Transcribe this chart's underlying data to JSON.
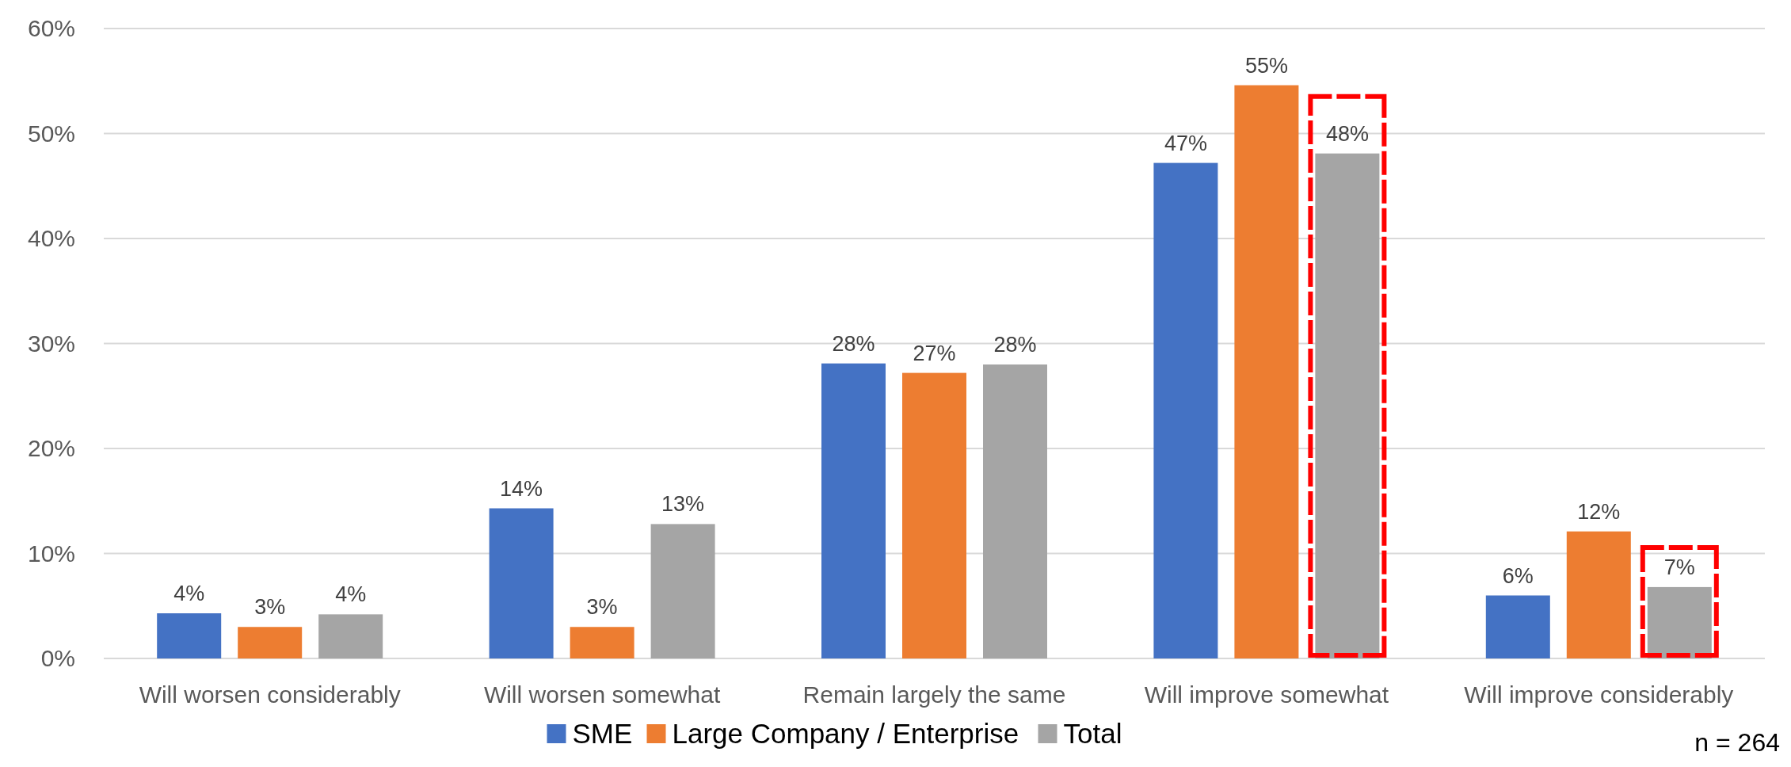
{
  "chart_data": {
    "type": "bar",
    "categories": [
      "Will worsen considerably",
      "Will worsen somewhat",
      "Remain largely the same",
      "Will improve somewhat",
      "Will improve considerably"
    ],
    "series": [
      {
        "name": "SME",
        "color": "#4472c4",
        "values": [
          4.3,
          14.3,
          28.1,
          47.2,
          6.0
        ],
        "value_labels": [
          "4%",
          "14%",
          "28%",
          "47%",
          "6%"
        ]
      },
      {
        "name": "Large Company / Enterprise",
        "color": "#ed7d31",
        "values": [
          3.0,
          3.0,
          27.2,
          54.6,
          12.1
        ],
        "value_labels": [
          "3%",
          "3%",
          "27%",
          "55%",
          "12%"
        ]
      },
      {
        "name": "Total",
        "color": "#a5a5a5",
        "values": [
          4.2,
          12.8,
          28.0,
          48.1,
          6.8
        ],
        "value_labels": [
          "4%",
          "13%",
          "28%",
          "48%",
          "7%"
        ]
      }
    ],
    "ylim": [
      0,
      60
    ],
    "yticks": [
      {
        "value": 0,
        "label": "0%"
      },
      {
        "value": 10,
        "label": "10%"
      },
      {
        "value": 20,
        "label": "20%"
      },
      {
        "value": 30,
        "label": "30%"
      },
      {
        "value": 40,
        "label": "40%"
      },
      {
        "value": 50,
        "label": "50%"
      },
      {
        "value": 60,
        "label": "60%"
      }
    ],
    "grid": "y",
    "legend": "bottom",
    "annotations": [
      "n = 264"
    ]
  }
}
